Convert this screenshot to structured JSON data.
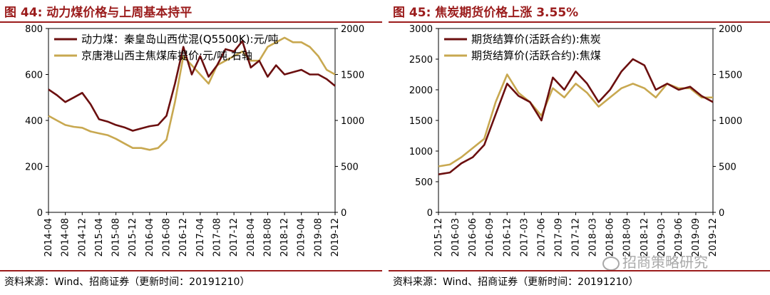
{
  "left_panel": {
    "title": "图 44:  动力煤价格与上周基本持平",
    "source": "资料来源：Wind、招商证券（更新时间：20191210）"
  },
  "right_panel": {
    "title": "图 45:  焦炭期货价格上涨 3.55%",
    "source": "资料来源：Wind、招商证券（更新时间：20191210）",
    "watermark": "招商策略研究"
  },
  "chart_data": [
    {
      "type": "line",
      "title": "",
      "x": [
        "2014-04",
        "2014-06",
        "2014-08",
        "2014-10",
        "2014-12",
        "2015-02",
        "2015-04",
        "2015-06",
        "2015-08",
        "2015-10",
        "2015-12",
        "2016-02",
        "2016-04",
        "2016-06",
        "2016-08",
        "2016-10",
        "2016-12",
        "2017-02",
        "2017-04",
        "2017-06",
        "2017-08",
        "2017-10",
        "2017-12",
        "2018-02",
        "2018-04",
        "2018-06",
        "2018-08",
        "2018-10",
        "2018-12",
        "2019-02",
        "2019-04",
        "2019-06",
        "2019-08",
        "2019-10",
        "2019-12"
      ],
      "xticks": [
        "2014-04",
        "2014-08",
        "2014-12",
        "2015-04",
        "2015-08",
        "2015-12",
        "2016-04",
        "2016-08",
        "2016-12",
        "2017-04",
        "2017-08",
        "2017-12",
        "2018-04",
        "2018-08",
        "2018-12",
        "2019-04",
        "2019-08",
        "2019-12"
      ],
      "series": [
        {
          "name": "动力煤：秦皇岛山西优混(Q5500K):元/吨",
          "color": "#6b0f0f",
          "axis": "left",
          "values": [
            535,
            510,
            480,
            500,
            520,
            470,
            405,
            395,
            380,
            370,
            355,
            365,
            375,
            380,
            420,
            560,
            720,
            600,
            680,
            590,
            640,
            710,
            700,
            745,
            630,
            660,
            590,
            640,
            600,
            610,
            620,
            600,
            600,
            580,
            550
          ]
        },
        {
          "name": "京唐港山西主焦煤库提价:元/吨,右轴",
          "color": "#c8a850",
          "axis": "right",
          "values": [
            1050,
            1000,
            950,
            930,
            920,
            880,
            860,
            840,
            800,
            750,
            700,
            700,
            680,
            700,
            790,
            1200,
            1700,
            1600,
            1500,
            1400,
            1600,
            1650,
            1700,
            1750,
            1650,
            1650,
            1800,
            1850,
            1900,
            1850,
            1850,
            1800,
            1700,
            1550,
            1500
          ]
        }
      ],
      "ylim": [
        0,
        800
      ],
      "yticks": [
        0,
        200,
        400,
        600,
        800
      ],
      "y2lim": [
        0,
        2000
      ],
      "y2ticks": [
        0,
        500,
        1000,
        1500,
        2000
      ],
      "legend": "top-left"
    },
    {
      "type": "line",
      "title": "",
      "x": [
        "2015-12",
        "2016-02",
        "2016-04",
        "2016-06",
        "2016-08",
        "2016-10",
        "2016-12",
        "2017-02",
        "2017-04",
        "2017-06",
        "2017-08",
        "2017-10",
        "2017-12",
        "2018-02",
        "2018-04",
        "2018-06",
        "2018-08",
        "2018-10",
        "2018-12",
        "2019-02",
        "2019-04",
        "2019-06",
        "2019-08",
        "2019-10",
        "2019-12"
      ],
      "xticks": [
        "2015-12",
        "2016-03",
        "2016-06",
        "2016-09",
        "2016-12",
        "2017-03",
        "2017-06",
        "2017-09",
        "2017-12",
        "2018-03",
        "2018-06",
        "2018-09",
        "2018-12",
        "2019-03",
        "2019-06",
        "2019-09",
        "2019-12"
      ],
      "series": [
        {
          "name": "期货结算价(活跃合约):焦炭",
          "color": "#6b0f0f",
          "axis": "left",
          "values": [
            620,
            650,
            800,
            900,
            1100,
            1600,
            2100,
            1900,
            1800,
            1500,
            2200,
            2000,
            2300,
            2100,
            1800,
            2000,
            2300,
            2500,
            2400,
            2000,
            2100,
            2000,
            2050,
            1900,
            1800
          ]
        },
        {
          "name": "期货结算价(活跃合约):焦煤",
          "color": "#c8a850",
          "axis": "right",
          "values": [
            500,
            520,
            600,
            700,
            800,
            1200,
            1500,
            1300,
            1200,
            1050,
            1350,
            1250,
            1400,
            1300,
            1150,
            1250,
            1350,
            1400,
            1350,
            1250,
            1400,
            1350,
            1350,
            1250,
            1250
          ]
        }
      ],
      "ylim": [
        0,
        3000
      ],
      "yticks": [
        0,
        500,
        1000,
        1500,
        2000,
        2500,
        3000
      ],
      "y2lim": [
        0,
        2000
      ],
      "y2ticks": [
        0,
        500,
        1000,
        1500,
        2000
      ],
      "legend": "top-left"
    }
  ]
}
